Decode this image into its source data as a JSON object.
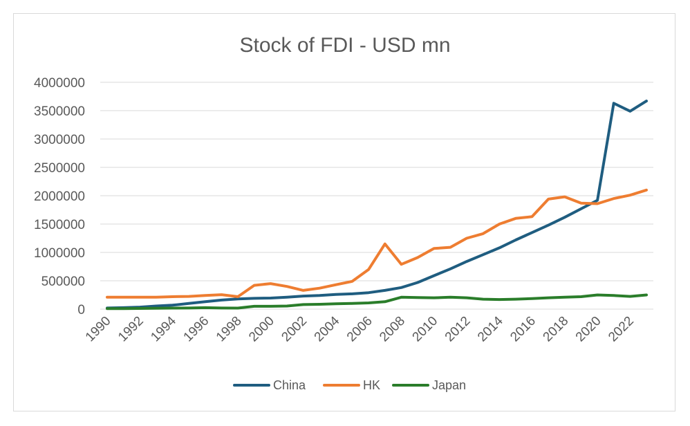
{
  "chart_data": {
    "type": "line",
    "title": "Stock of FDI - USD mn",
    "xlabel": "",
    "ylabel": "",
    "ylim": [
      0,
      4000000
    ],
    "yticks": [
      "0",
      "500000",
      "1000000",
      "1500000",
      "2000000",
      "2500000",
      "3000000",
      "3500000",
      "4000000"
    ],
    "x": [
      1990,
      1991,
      1992,
      1993,
      1994,
      1995,
      1996,
      1997,
      1998,
      1999,
      2000,
      2001,
      2002,
      2003,
      2004,
      2005,
      2006,
      2007,
      2008,
      2009,
      2010,
      2011,
      2012,
      2013,
      2014,
      2015,
      2016,
      2017,
      2018,
      2019,
      2020,
      2021,
      2022,
      2023
    ],
    "xtick_labels": [
      "1990",
      "1992",
      "1994",
      "1996",
      "1998",
      "2000",
      "2002",
      "2004",
      "2006",
      "2008",
      "2010",
      "2012",
      "2014",
      "2016",
      "2018",
      "2020",
      "2022"
    ],
    "grid": true,
    "legend_position": "bottom",
    "series": [
      {
        "name": "China",
        "color": "#1f5d80",
        "values": [
          20000,
          25000,
          35000,
          55000,
          70000,
          100000,
          130000,
          160000,
          180000,
          190000,
          195000,
          210000,
          230000,
          240000,
          260000,
          270000,
          290000,
          330000,
          380000,
          470000,
          590000,
          710000,
          840000,
          960000,
          1080000,
          1220000,
          1350000,
          1480000,
          1620000,
          1770000,
          1920000,
          3630000,
          3490000,
          3670000
        ]
      },
      {
        "name": "HK",
        "color": "#ee7d31",
        "values": [
          210000,
          210000,
          210000,
          210000,
          220000,
          225000,
          240000,
          255000,
          220000,
          420000,
          450000,
          400000,
          330000,
          370000,
          430000,
          490000,
          700000,
          1150000,
          790000,
          910000,
          1070000,
          1090000,
          1250000,
          1330000,
          1500000,
          1600000,
          1630000,
          1940000,
          1980000,
          1870000,
          1860000,
          1950000,
          2010000,
          2100000
        ]
      },
      {
        "name": "Japan",
        "color": "#2a7d2a",
        "values": [
          10000,
          10000,
          12000,
          15000,
          18000,
          20000,
          25000,
          20000,
          18000,
          50000,
          50000,
          55000,
          80000,
          85000,
          95000,
          100000,
          110000,
          130000,
          210000,
          205000,
          200000,
          210000,
          200000,
          175000,
          170000,
          175000,
          185000,
          200000,
          210000,
          220000,
          250000,
          240000,
          225000,
          250000
        ]
      }
    ]
  }
}
